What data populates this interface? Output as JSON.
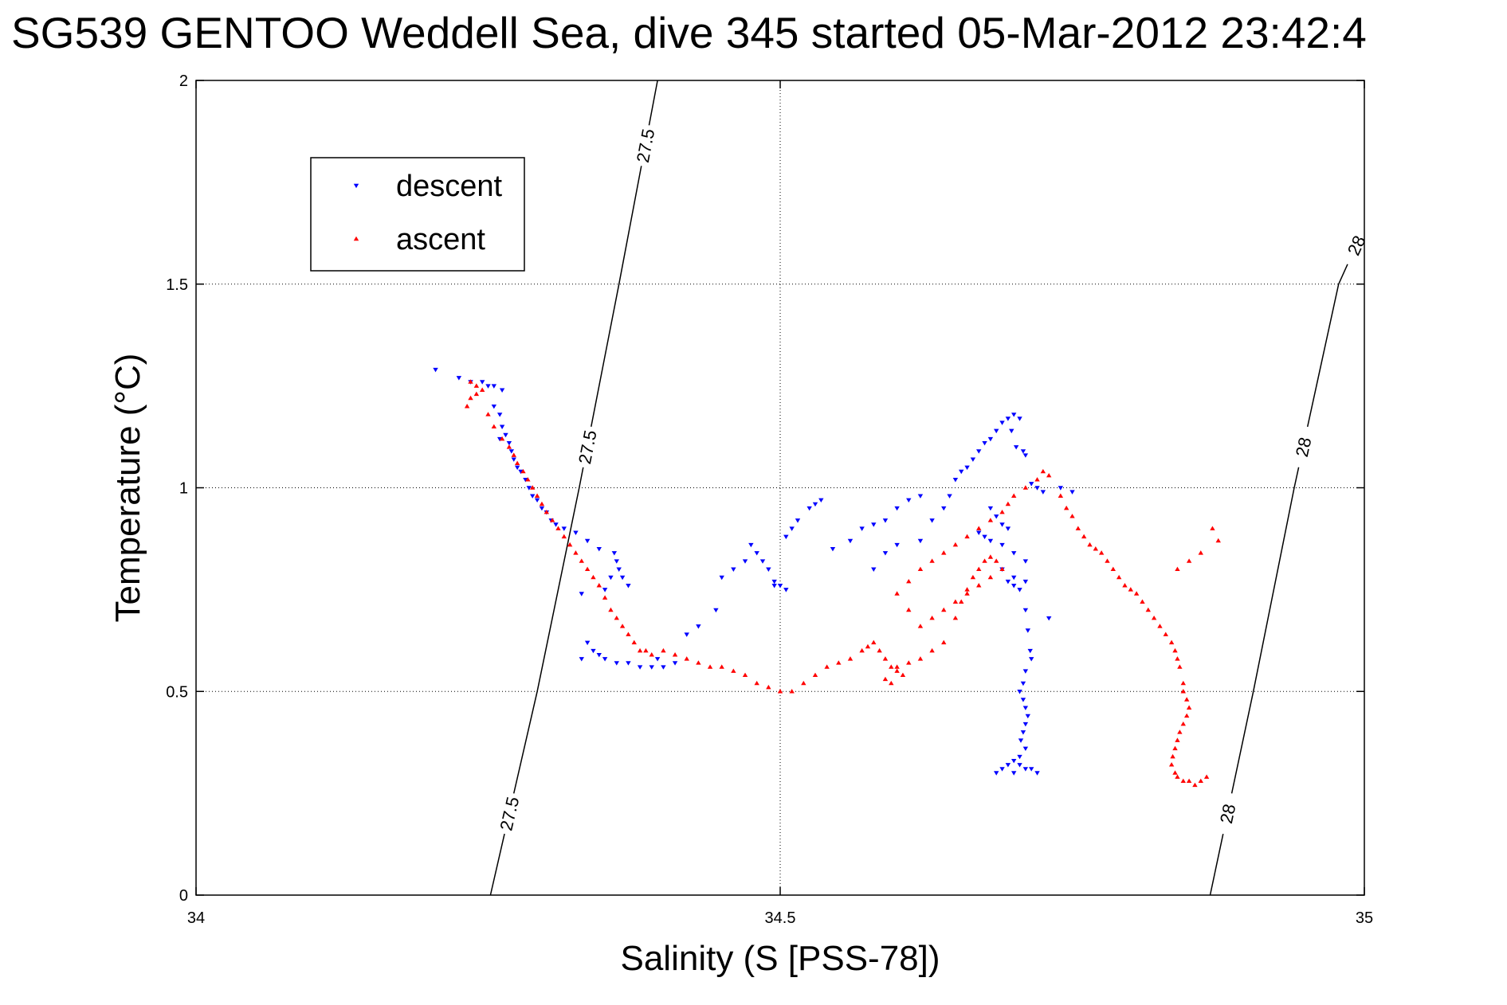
{
  "chart_data": {
    "type": "scatter",
    "title": "SG539 GENTOO Weddell Sea, dive 345 started 05-Mar-2012 23:42:4",
    "xlabel": "Salinity (S [PSS-78])",
    "ylabel": "Temperature (°C)",
    "xlim": [
      34,
      35
    ],
    "ylim": [
      0,
      2
    ],
    "xticks": [
      "34",
      "34.5",
      "35"
    ],
    "yticks": [
      "0",
      "0.5",
      "1",
      "1.5",
      "2"
    ],
    "grid": true,
    "legend_position": "upper-left",
    "series": [
      {
        "name": "descent",
        "color": "#0000ff",
        "marker": "triangle-down",
        "points": [
          [
            34.205,
            1.29
          ],
          [
            34.225,
            1.27
          ],
          [
            34.235,
            1.26
          ],
          [
            34.245,
            1.26
          ],
          [
            34.25,
            1.25
          ],
          [
            34.255,
            1.25
          ],
          [
            34.262,
            1.24
          ],
          [
            34.255,
            1.2
          ],
          [
            34.26,
            1.18
          ],
          [
            34.262,
            1.15
          ],
          [
            34.265,
            1.13
          ],
          [
            34.26,
            1.12
          ],
          [
            34.268,
            1.11
          ],
          [
            34.27,
            1.09
          ],
          [
            34.272,
            1.07
          ],
          [
            34.275,
            1.05
          ],
          [
            34.278,
            1.04
          ],
          [
            34.282,
            1.02
          ],
          [
            34.285,
            1.0
          ],
          [
            34.288,
            0.98
          ],
          [
            34.292,
            0.97
          ],
          [
            34.296,
            0.95
          ],
          [
            34.3,
            0.94
          ],
          [
            34.304,
            0.92
          ],
          [
            34.308,
            0.91
          ],
          [
            34.315,
            0.9
          ],
          [
            34.325,
            0.89
          ],
          [
            34.335,
            0.87
          ],
          [
            34.345,
            0.85
          ],
          [
            34.358,
            0.84
          ],
          [
            34.36,
            0.82
          ],
          [
            34.362,
            0.8
          ],
          [
            34.365,
            0.78
          ],
          [
            34.355,
            0.78
          ],
          [
            34.37,
            0.76
          ],
          [
            34.35,
            0.75
          ],
          [
            34.33,
            0.74
          ],
          [
            34.335,
            0.62
          ],
          [
            34.34,
            0.6
          ],
          [
            34.345,
            0.59
          ],
          [
            34.35,
            0.58
          ],
          [
            34.33,
            0.58
          ],
          [
            34.36,
            0.57
          ],
          [
            34.37,
            0.57
          ],
          [
            34.38,
            0.56
          ],
          [
            34.39,
            0.56
          ],
          [
            34.4,
            0.56
          ],
          [
            34.41,
            0.57
          ],
          [
            34.395,
            0.58
          ],
          [
            34.42,
            0.64
          ],
          [
            34.43,
            0.66
          ],
          [
            34.445,
            0.7
          ],
          [
            34.45,
            0.78
          ],
          [
            34.46,
            0.8
          ],
          [
            34.47,
            0.82
          ],
          [
            34.475,
            0.86
          ],
          [
            34.48,
            0.84
          ],
          [
            34.485,
            0.82
          ],
          [
            34.49,
            0.8
          ],
          [
            34.495,
            0.77
          ],
          [
            34.495,
            0.76
          ],
          [
            34.5,
            0.76
          ],
          [
            34.505,
            0.75
          ],
          [
            34.505,
            0.88
          ],
          [
            34.51,
            0.9
          ],
          [
            34.515,
            0.92
          ],
          [
            34.525,
            0.95
          ],
          [
            34.53,
            0.96
          ],
          [
            34.535,
            0.97
          ],
          [
            34.545,
            0.85
          ],
          [
            34.56,
            0.87
          ],
          [
            34.57,
            0.9
          ],
          [
            34.58,
            0.91
          ],
          [
            34.59,
            0.92
          ],
          [
            34.6,
            0.95
          ],
          [
            34.61,
            0.97
          ],
          [
            34.62,
            0.98
          ],
          [
            34.6,
            0.86
          ],
          [
            34.59,
            0.84
          ],
          [
            34.58,
            0.8
          ],
          [
            34.62,
            0.87
          ],
          [
            34.63,
            0.92
          ],
          [
            34.64,
            0.95
          ],
          [
            34.645,
            0.98
          ],
          [
            34.65,
            1.02
          ],
          [
            34.655,
            1.04
          ],
          [
            34.66,
            1.05
          ],
          [
            34.665,
            1.07
          ],
          [
            34.67,
            1.09
          ],
          [
            34.675,
            1.11
          ],
          [
            34.68,
            1.12
          ],
          [
            34.685,
            1.14
          ],
          [
            34.69,
            1.16
          ],
          [
            34.695,
            1.17
          ],
          [
            34.7,
            1.18
          ],
          [
            34.705,
            1.17
          ],
          [
            34.698,
            1.14
          ],
          [
            34.702,
            1.1
          ],
          [
            34.708,
            1.09
          ],
          [
            34.71,
            1.08
          ],
          [
            34.715,
            1.01
          ],
          [
            34.72,
            1.0
          ],
          [
            34.725,
            0.99
          ],
          [
            34.68,
            0.95
          ],
          [
            34.685,
            0.93
          ],
          [
            34.69,
            0.91
          ],
          [
            34.695,
            0.9
          ],
          [
            34.67,
            0.89
          ],
          [
            34.675,
            0.88
          ],
          [
            34.68,
            0.87
          ],
          [
            34.69,
            0.86
          ],
          [
            34.7,
            0.84
          ],
          [
            34.71,
            0.82
          ],
          [
            34.69,
            0.8
          ],
          [
            34.7,
            0.78
          ],
          [
            34.71,
            0.77
          ],
          [
            34.695,
            0.77
          ],
          [
            34.7,
            0.76
          ],
          [
            34.705,
            0.75
          ],
          [
            34.71,
            0.7
          ],
          [
            34.712,
            0.65
          ],
          [
            34.714,
            0.6
          ],
          [
            34.715,
            0.58
          ],
          [
            34.71,
            0.55
          ],
          [
            34.708,
            0.52
          ],
          [
            34.705,
            0.5
          ],
          [
            34.708,
            0.48
          ],
          [
            34.71,
            0.46
          ],
          [
            34.712,
            0.44
          ],
          [
            34.71,
            0.42
          ],
          [
            34.708,
            0.4
          ],
          [
            34.706,
            0.38
          ],
          [
            34.71,
            0.36
          ],
          [
            34.705,
            0.34
          ],
          [
            34.7,
            0.33
          ],
          [
            34.695,
            0.32
          ],
          [
            34.705,
            0.32
          ],
          [
            34.71,
            0.31
          ],
          [
            34.715,
            0.31
          ],
          [
            34.72,
            0.3
          ],
          [
            34.69,
            0.31
          ],
          [
            34.685,
            0.3
          ],
          [
            34.7,
            0.3
          ],
          [
            34.73,
            0.68
          ],
          [
            34.74,
            1.0
          ],
          [
            34.75,
            0.99
          ]
        ]
      },
      {
        "name": "ascent",
        "color": "#ff0000",
        "marker": "triangle-up",
        "points": [
          [
            34.235,
            1.26
          ],
          [
            34.24,
            1.25
          ],
          [
            34.245,
            1.24
          ],
          [
            34.24,
            1.23
          ],
          [
            34.235,
            1.22
          ],
          [
            34.232,
            1.2
          ],
          [
            34.25,
            1.18
          ],
          [
            34.255,
            1.15
          ],
          [
            34.262,
            1.12
          ],
          [
            34.268,
            1.1
          ],
          [
            34.272,
            1.08
          ],
          [
            34.275,
            1.06
          ],
          [
            34.28,
            1.04
          ],
          [
            34.284,
            1.02
          ],
          [
            34.288,
            1.0
          ],
          [
            34.292,
            0.98
          ],
          [
            34.296,
            0.96
          ],
          [
            34.3,
            0.94
          ],
          [
            34.305,
            0.92
          ],
          [
            34.31,
            0.9
          ],
          [
            34.315,
            0.88
          ],
          [
            34.32,
            0.86
          ],
          [
            34.325,
            0.84
          ],
          [
            34.33,
            0.82
          ],
          [
            34.335,
            0.8
          ],
          [
            34.34,
            0.78
          ],
          [
            34.345,
            0.76
          ],
          [
            34.35,
            0.73
          ],
          [
            34.355,
            0.7
          ],
          [
            34.36,
            0.68
          ],
          [
            34.365,
            0.66
          ],
          [
            34.37,
            0.64
          ],
          [
            34.375,
            0.62
          ],
          [
            34.38,
            0.6
          ],
          [
            34.385,
            0.6
          ],
          [
            34.39,
            0.59
          ],
          [
            34.4,
            0.6
          ],
          [
            34.41,
            0.59
          ],
          [
            34.42,
            0.58
          ],
          [
            34.43,
            0.57
          ],
          [
            34.44,
            0.56
          ],
          [
            34.45,
            0.56
          ],
          [
            34.46,
            0.55
          ],
          [
            34.47,
            0.54
          ],
          [
            34.48,
            0.52
          ],
          [
            34.49,
            0.51
          ],
          [
            34.5,
            0.5
          ],
          [
            34.51,
            0.5
          ],
          [
            34.52,
            0.52
          ],
          [
            34.53,
            0.54
          ],
          [
            34.54,
            0.56
          ],
          [
            34.55,
            0.57
          ],
          [
            34.56,
            0.58
          ],
          [
            34.57,
            0.6
          ],
          [
            34.575,
            0.61
          ],
          [
            34.58,
            0.62
          ],
          [
            34.585,
            0.6
          ],
          [
            34.59,
            0.58
          ],
          [
            34.595,
            0.56
          ],
          [
            34.6,
            0.55
          ],
          [
            34.605,
            0.54
          ],
          [
            34.59,
            0.53
          ],
          [
            34.595,
            0.52
          ],
          [
            34.6,
            0.56
          ],
          [
            34.61,
            0.57
          ],
          [
            34.62,
            0.58
          ],
          [
            34.63,
            0.6
          ],
          [
            34.64,
            0.62
          ],
          [
            34.65,
            0.68
          ],
          [
            34.655,
            0.72
          ],
          [
            34.66,
            0.75
          ],
          [
            34.665,
            0.78
          ],
          [
            34.67,
            0.8
          ],
          [
            34.675,
            0.82
          ],
          [
            34.68,
            0.83
          ],
          [
            34.685,
            0.82
          ],
          [
            34.69,
            0.8
          ],
          [
            34.68,
            0.78
          ],
          [
            34.67,
            0.76
          ],
          [
            34.66,
            0.74
          ],
          [
            34.65,
            0.72
          ],
          [
            34.64,
            0.7
          ],
          [
            34.63,
            0.68
          ],
          [
            34.62,
            0.66
          ],
          [
            34.61,
            0.7
          ],
          [
            34.6,
            0.74
          ],
          [
            34.61,
            0.77
          ],
          [
            34.62,
            0.8
          ],
          [
            34.63,
            0.82
          ],
          [
            34.64,
            0.84
          ],
          [
            34.65,
            0.86
          ],
          [
            34.66,
            0.88
          ],
          [
            34.67,
            0.9
          ],
          [
            34.68,
            0.92
          ],
          [
            34.69,
            0.94
          ],
          [
            34.695,
            0.96
          ],
          [
            34.7,
            0.98
          ],
          [
            34.71,
            1.0
          ],
          [
            34.72,
            1.02
          ],
          [
            34.725,
            1.04
          ],
          [
            34.73,
            1.03
          ],
          [
            34.74,
            0.98
          ],
          [
            34.745,
            0.95
          ],
          [
            34.75,
            0.93
          ],
          [
            34.755,
            0.9
          ],
          [
            34.76,
            0.88
          ],
          [
            34.765,
            0.86
          ],
          [
            34.77,
            0.85
          ],
          [
            34.775,
            0.84
          ],
          [
            34.78,
            0.82
          ],
          [
            34.785,
            0.8
          ],
          [
            34.79,
            0.78
          ],
          [
            34.795,
            0.76
          ],
          [
            34.8,
            0.75
          ],
          [
            34.805,
            0.74
          ],
          [
            34.81,
            0.72
          ],
          [
            34.815,
            0.7
          ],
          [
            34.82,
            0.68
          ],
          [
            34.825,
            0.66
          ],
          [
            34.83,
            0.64
          ],
          [
            34.835,
            0.62
          ],
          [
            34.838,
            0.6
          ],
          [
            34.84,
            0.58
          ],
          [
            34.842,
            0.56
          ],
          [
            34.845,
            0.52
          ],
          [
            34.845,
            0.5
          ],
          [
            34.848,
            0.48
          ],
          [
            34.85,
            0.46
          ],
          [
            34.848,
            0.44
          ],
          [
            34.845,
            0.42
          ],
          [
            34.842,
            0.4
          ],
          [
            34.84,
            0.38
          ],
          [
            34.838,
            0.36
          ],
          [
            34.836,
            0.34
          ],
          [
            34.835,
            0.32
          ],
          [
            34.838,
            0.3
          ],
          [
            34.84,
            0.29
          ],
          [
            34.845,
            0.28
          ],
          [
            34.85,
            0.28
          ],
          [
            34.855,
            0.27
          ],
          [
            34.86,
            0.28
          ],
          [
            34.865,
            0.29
          ],
          [
            34.87,
            0.9
          ],
          [
            34.875,
            0.87
          ],
          [
            34.86,
            0.84
          ],
          [
            34.85,
            0.82
          ],
          [
            34.84,
            0.8
          ]
        ]
      }
    ],
    "contours": [
      {
        "label": "27.5",
        "points": [
          [
            34.252,
            0
          ],
          [
            34.292,
            0.5
          ],
          [
            34.328,
            1.0
          ],
          [
            34.362,
            1.5
          ],
          [
            34.395,
            2.0
          ]
        ]
      },
      {
        "label": "28",
        "points": [
          [
            34.868,
            0
          ],
          [
            34.905,
            0.5
          ],
          [
            34.94,
            1.0
          ],
          [
            34.978,
            1.5
          ],
          [
            35.0,
            1.64
          ]
        ]
      }
    ]
  }
}
